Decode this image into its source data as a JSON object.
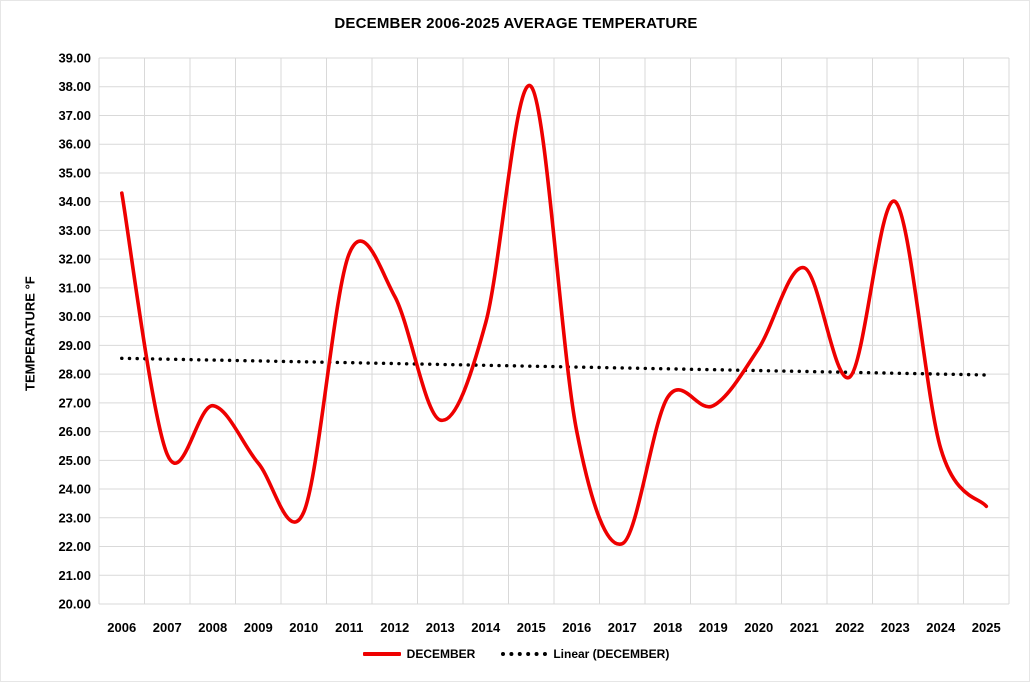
{
  "title": "DECEMBER 2006-2025 AVERAGE TEMPERATURE",
  "chart_data": {
    "type": "line",
    "title": "DECEMBER 2006-2025 AVERAGE TEMPERATURE",
    "xlabel": "",
    "ylabel": "TEMPERATURE °F",
    "ylim": [
      20,
      39
    ],
    "ytick_step": 1,
    "ytick_decimals": 2,
    "grid": true,
    "legend_position": "bottom",
    "categories": [
      2006,
      2007,
      2008,
      2009,
      2010,
      2011,
      2012,
      2013,
      2014,
      2015,
      2016,
      2017,
      2018,
      2019,
      2020,
      2021,
      2022,
      2023,
      2024,
      2025
    ],
    "series": [
      {
        "name": "DECEMBER",
        "style": "smooth-line",
        "color": "#ee0000",
        "values": [
          34.3,
          25.2,
          26.9,
          24.9,
          23.2,
          32.2,
          30.7,
          26.4,
          29.8,
          38.0,
          26.0,
          22.1,
          27.2,
          26.9,
          28.9,
          31.7,
          27.9,
          34.0,
          25.4,
          23.4
        ]
      },
      {
        "name": "Linear (DECEMBER)",
        "style": "dotted-trendline",
        "color": "#000000",
        "trend_start": 28.55,
        "trend_end": 27.97
      }
    ]
  },
  "legend": {
    "items": [
      {
        "label": "DECEMBER"
      },
      {
        "label": "Linear (DECEMBER)"
      }
    ]
  },
  "colors": {
    "series_red": "#ee0000",
    "trend_black": "#000000",
    "gridline_gray": "#d9d9d9",
    "text_black": "#000000",
    "background": "#ffffff"
  }
}
